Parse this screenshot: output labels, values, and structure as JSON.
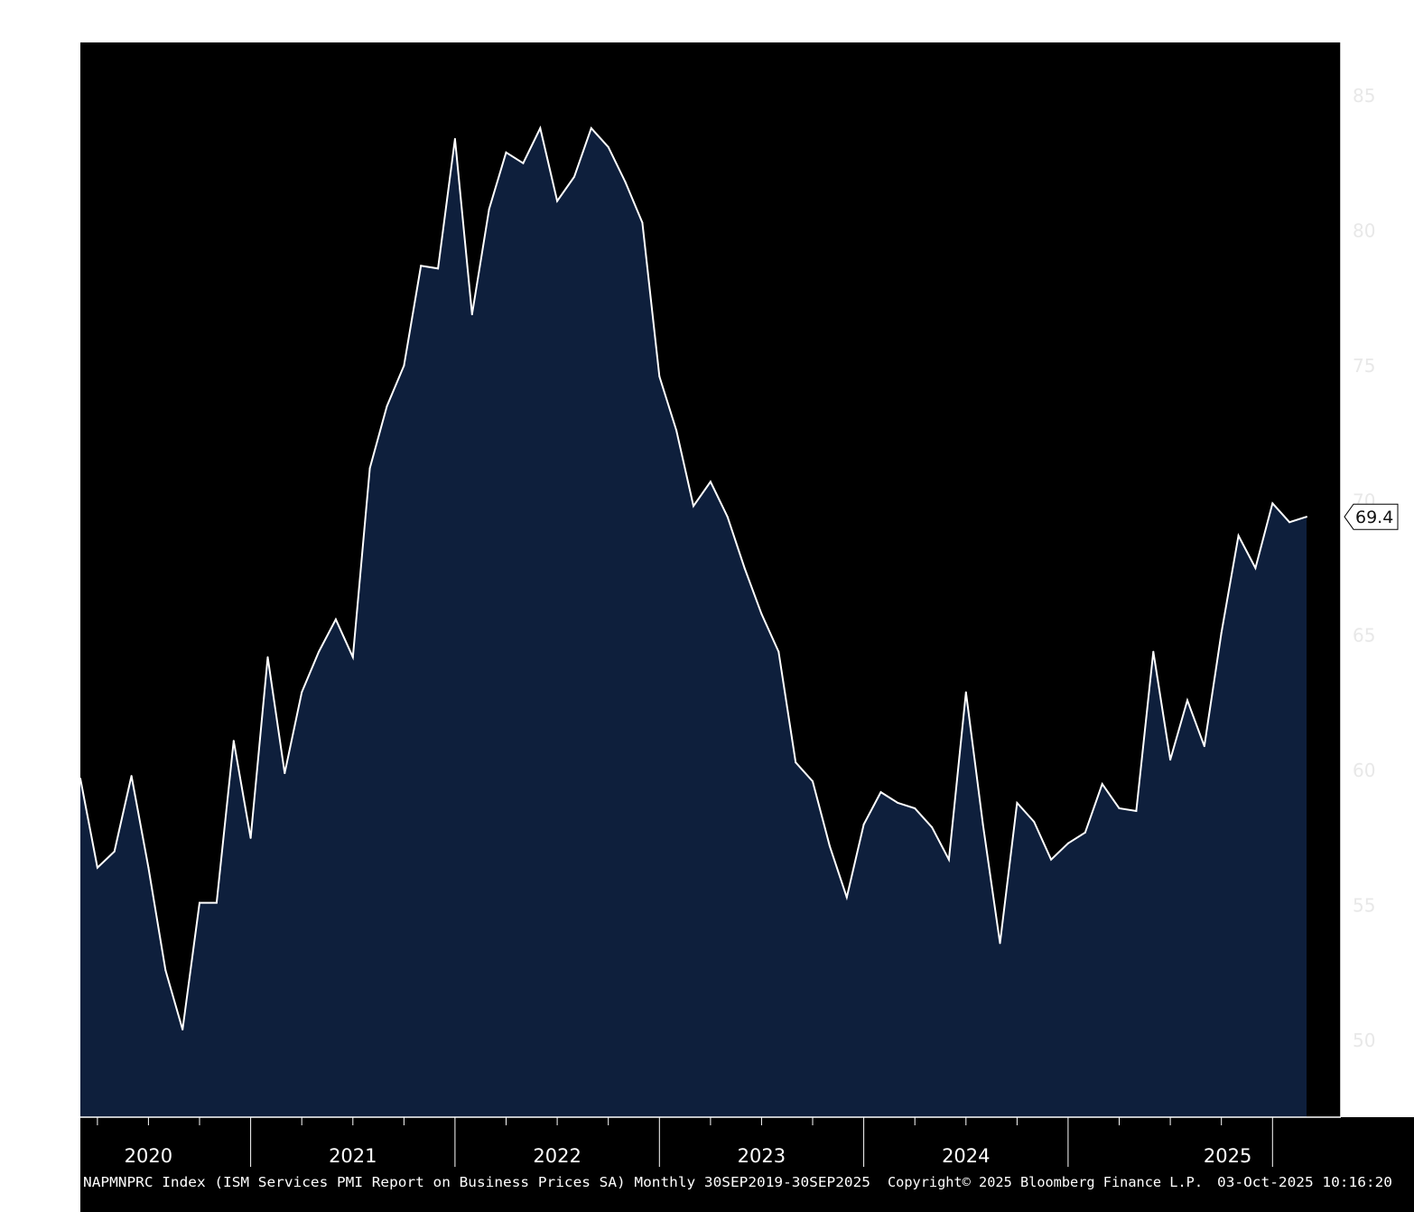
{
  "chart_data": {
    "type": "area",
    "title": "",
    "xlabel": "",
    "ylabel": "",
    "ylim": [
      47.4,
      86.8
    ],
    "y_ticks": [
      50,
      55,
      60,
      65,
      70,
      75,
      80,
      85
    ],
    "x_tick_labels": [
      "2020",
      "2021",
      "2022",
      "2023",
      "2024",
      "2025"
    ],
    "grid": false,
    "x": [
      "2019-09",
      "2019-10",
      "2019-11",
      "2019-12",
      "2020-01",
      "2020-02",
      "2020-03",
      "2020-04",
      "2020-05",
      "2020-06",
      "2020-07",
      "2020-08",
      "2020-09",
      "2020-10",
      "2020-11",
      "2020-12",
      "2021-01",
      "2021-02",
      "2021-03",
      "2021-04",
      "2021-05",
      "2021-06",
      "2021-07",
      "2021-08",
      "2021-09",
      "2021-10",
      "2021-11",
      "2021-12",
      "2022-01",
      "2022-02",
      "2022-03",
      "2022-04",
      "2022-05",
      "2022-06",
      "2022-07",
      "2022-08",
      "2022-09",
      "2022-10",
      "2022-11",
      "2022-12",
      "2023-01",
      "2023-02",
      "2023-03",
      "2023-04",
      "2023-05",
      "2023-06",
      "2023-07",
      "2023-08",
      "2023-09",
      "2023-10",
      "2023-11",
      "2023-12",
      "2024-01",
      "2024-02",
      "2024-03",
      "2024-04",
      "2024-05",
      "2024-06",
      "2024-07",
      "2024-08",
      "2024-09",
      "2024-10",
      "2024-11",
      "2024-12",
      "2025-01",
      "2025-02",
      "2025-03",
      "2025-04",
      "2025-05",
      "2025-06",
      "2025-07",
      "2025-08",
      "2025-09"
    ],
    "values": [
      59.7,
      56.4,
      57.0,
      59.8,
      56.4,
      52.6,
      50.4,
      55.1,
      55.1,
      61.1,
      57.5,
      64.2,
      59.9,
      62.9,
      64.4,
      65.6,
      64.2,
      71.2,
      73.5,
      75.0,
      78.7,
      78.6,
      83.4,
      76.9,
      80.8,
      82.9,
      82.5,
      83.8,
      81.1,
      82.0,
      83.8,
      83.1,
      81.8,
      80.3,
      74.6,
      72.6,
      69.8,
      70.7,
      69.4,
      67.5,
      65.8,
      64.4,
      60.3,
      59.6,
      57.2,
      55.3,
      58.0,
      59.2,
      58.8,
      58.6,
      57.9,
      56.7,
      62.9,
      58.0,
      53.6,
      58.8,
      58.1,
      56.7,
      57.3,
      57.7,
      59.5,
      58.6,
      58.5,
      64.4,
      60.4,
      62.6,
      60.9,
      65.1,
      68.7,
      67.5,
      69.9,
      69.2,
      69.4
    ],
    "last_value_label": "69.4",
    "series": [
      {
        "values_ref": "values"
      }
    ],
    "colors": {
      "background": "#000000",
      "fill": "#0e1f3c",
      "line": "#ffffff",
      "axis": "#ffffff",
      "tag_fill": "#ffffff"
    }
  },
  "footer": {
    "description": "NAPMNPRC Index (ISM Services PMI Report on Business Prices SA) Monthly 30SEP2019-30SEP2025",
    "copyright": "Copyright© 2025 Bloomberg Finance L.P.",
    "timestamp": "03-Oct-2025 10:16:20"
  }
}
